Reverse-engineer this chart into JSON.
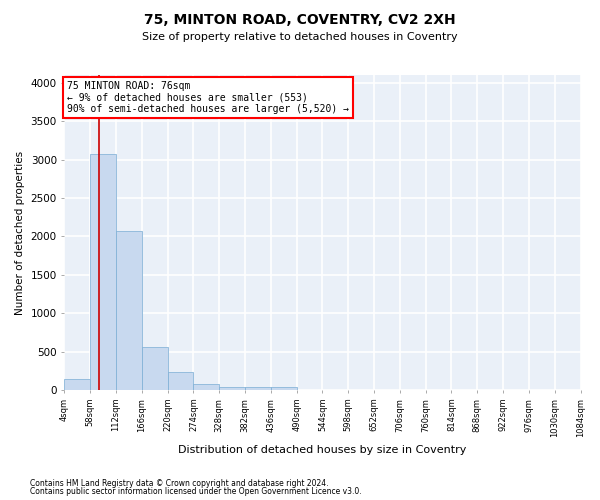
{
  "title": "75, MINTON ROAD, COVENTRY, CV2 2XH",
  "subtitle": "Size of property relative to detached houses in Coventry",
  "xlabel": "Distribution of detached houses by size in Coventry",
  "ylabel": "Number of detached properties",
  "bar_color": "#c8d9ef",
  "bar_edge_color": "#7aadd4",
  "annotation_line_color": "#cc0000",
  "annotation_text": "75 MINTON ROAD: 76sqm\n← 9% of detached houses are smaller (553)\n90% of semi-detached houses are larger (5,520) →",
  "property_size_sqm": 76,
  "bin_edges": [
    4,
    58,
    112,
    166,
    220,
    274,
    328,
    382,
    436,
    490,
    544,
    598,
    652,
    706,
    760,
    814,
    868,
    922,
    976,
    1030,
    1084
  ],
  "bin_labels": [
    "4sqm",
    "58sqm",
    "112sqm",
    "166sqm",
    "220sqm",
    "274sqm",
    "328sqm",
    "382sqm",
    "436sqm",
    "490sqm",
    "544sqm",
    "598sqm",
    "652sqm",
    "706sqm",
    "760sqm",
    "814sqm",
    "868sqm",
    "922sqm",
    "976sqm",
    "1030sqm",
    "1084sqm"
  ],
  "counts": [
    150,
    3070,
    2070,
    560,
    230,
    75,
    45,
    40,
    35,
    0,
    0,
    0,
    0,
    0,
    0,
    0,
    0,
    0,
    0,
    0
  ],
  "ylim": [
    0,
    4100
  ],
  "yticks": [
    0,
    500,
    1000,
    1500,
    2000,
    2500,
    3000,
    3500,
    4000
  ],
  "background_color": "#eaf0f8",
  "grid_color": "#ffffff",
  "footer_line1": "Contains HM Land Registry data © Crown copyright and database right 2024.",
  "footer_line2": "Contains public sector information licensed under the Open Government Licence v3.0."
}
